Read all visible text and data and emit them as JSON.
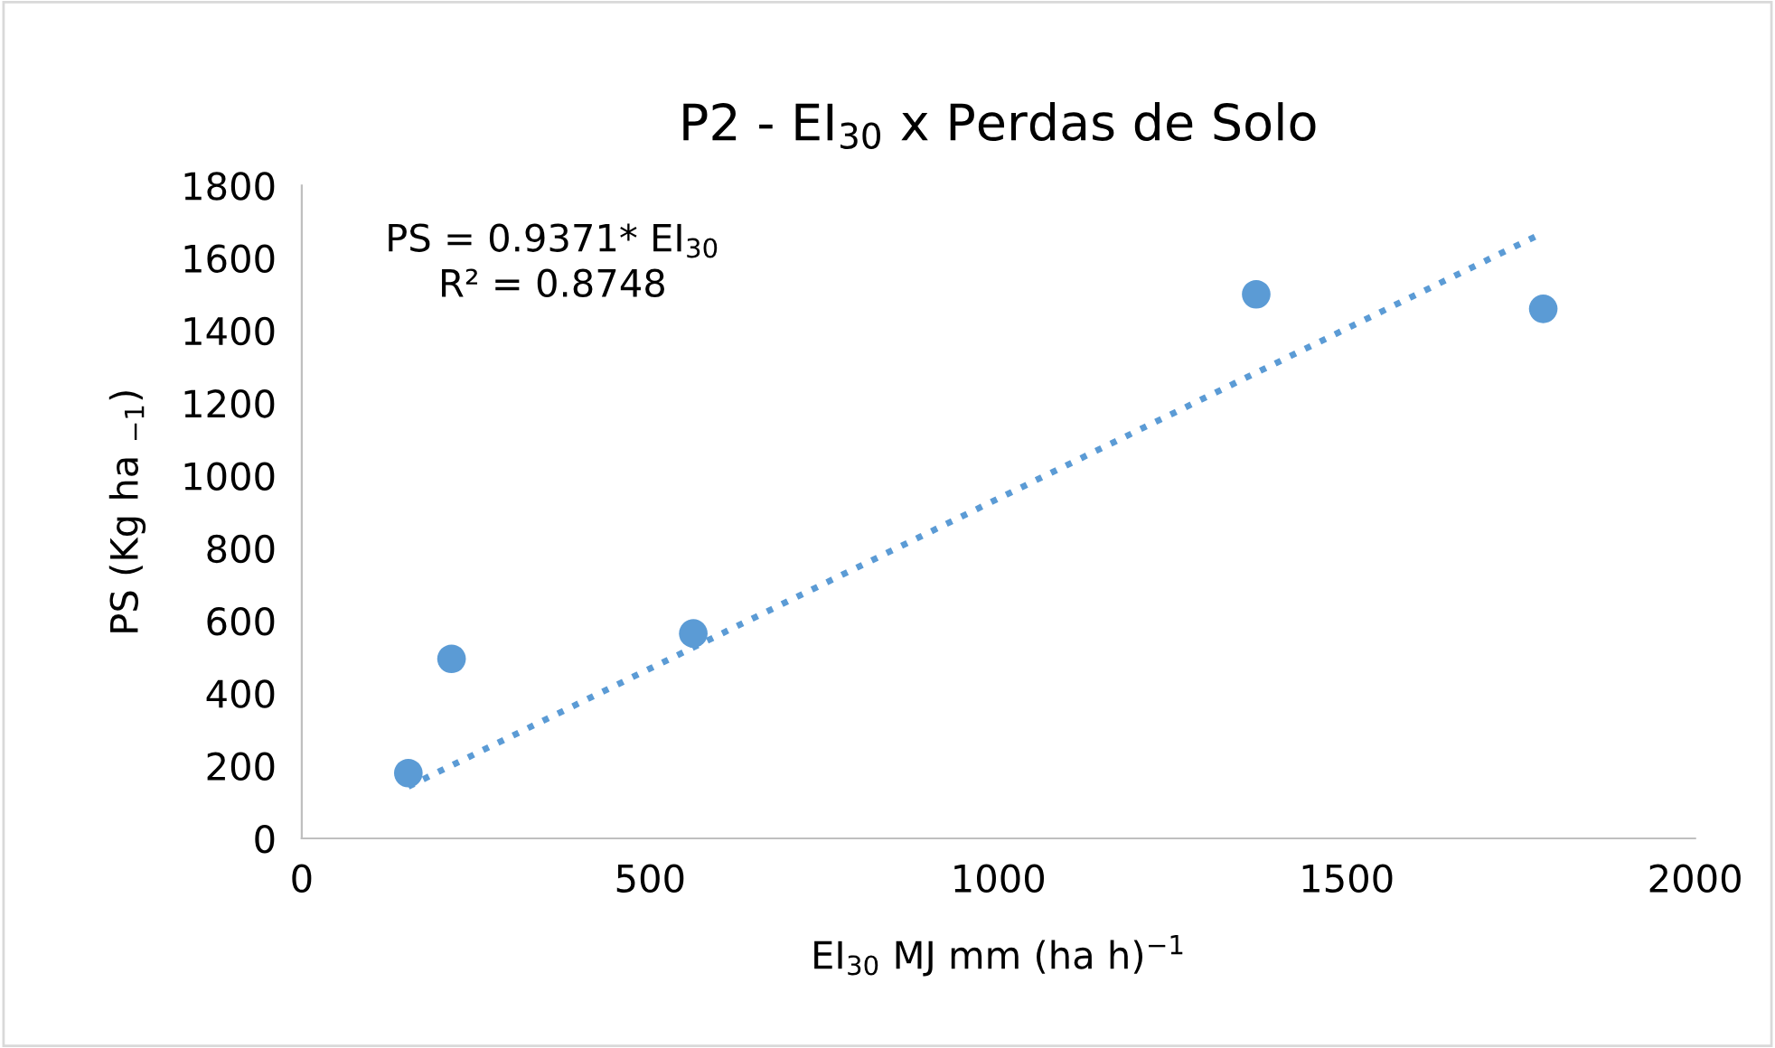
{
  "chart_data": {
    "type": "scatter",
    "title": "P2 - EI$_{30}$ x Perdas de Solo",
    "xlabel": "EI$_{30}$ MJ mm (ha h)$^{−1}$",
    "ylabel": "PS (Kg ha $_{−1}$)",
    "annotations": [
      "PS = 0.9371* EI$_{30}$\nR² = 0.8748"
    ],
    "series": [
      {
        "color": "#5b9bd5",
        "marker": "circle",
        "x": [
          153,
          215,
          562,
          1370,
          1782
        ],
        "values": [
          180,
          495,
          565,
          1500,
          1460
        ]
      },
      {
        "type": "line",
        "color": "#5b9bd5",
        "line_style": "dotted",
        "x": [
          153,
          1782
        ],
        "values": [
          143,
          1670
        ]
      }
    ],
    "xlim": [
      0,
      2000
    ],
    "xticks": [
      0,
      500,
      1000,
      1500,
      2000
    ],
    "ylim": [
      0,
      1800
    ],
    "yticks": [
      0,
      200,
      400,
      600,
      800,
      1000,
      1200,
      1400,
      1600,
      1800
    ],
    "grid": false,
    "legend": false
  }
}
